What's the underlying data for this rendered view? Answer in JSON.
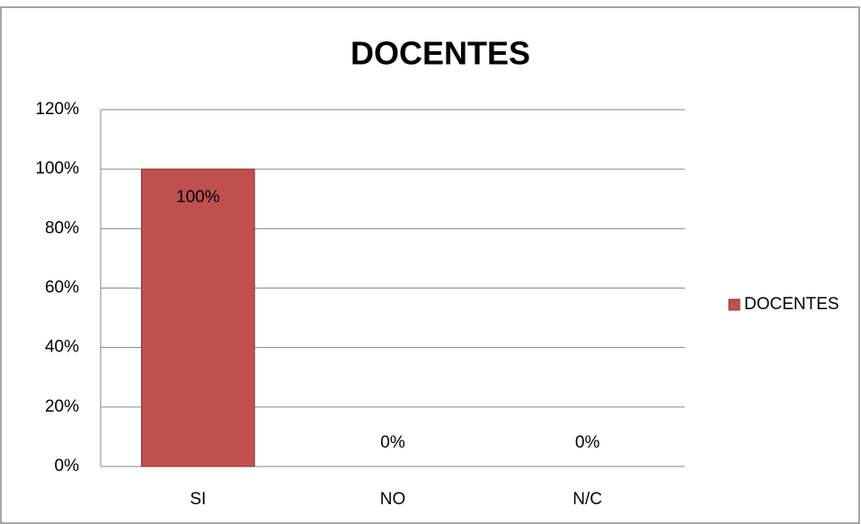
{
  "chart_data": {
    "type": "bar",
    "title": "DOCENTES",
    "categories": [
      "SI",
      "NO",
      "N/C"
    ],
    "series": [
      {
        "name": "DOCENTES",
        "color": "#c0504d",
        "values": [
          100,
          0,
          0
        ],
        "value_labels": [
          "100%",
          "0%",
          "0%"
        ]
      }
    ],
    "ylim": [
      0,
      120
    ],
    "yticks": [
      {
        "value": 0,
        "label": "0%"
      },
      {
        "value": 20,
        "label": "20%"
      },
      {
        "value": 40,
        "label": "40%"
      },
      {
        "value": 60,
        "label": "60%"
      },
      {
        "value": 80,
        "label": "80%"
      },
      {
        "value": 100,
        "label": "100%"
      },
      {
        "value": 120,
        "label": "120%"
      }
    ],
    "grid": true,
    "legend": "right"
  }
}
